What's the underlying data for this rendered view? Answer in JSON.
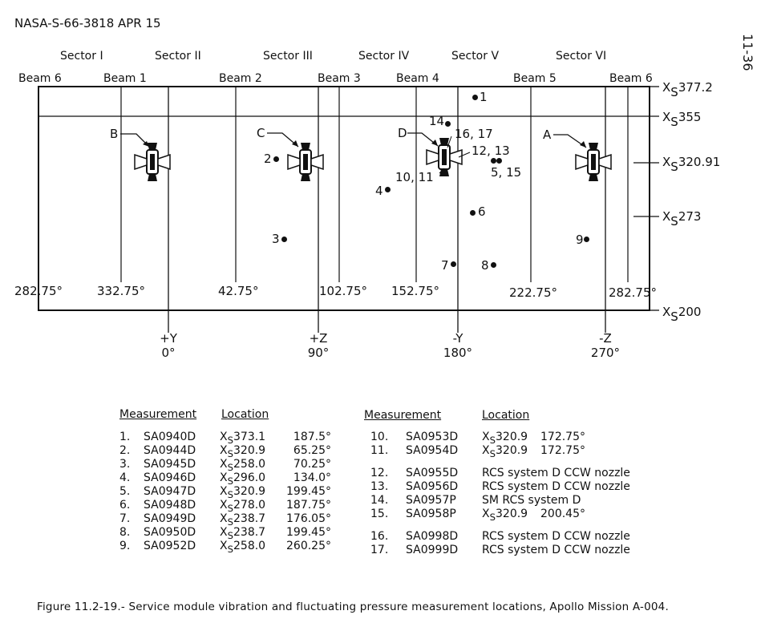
{
  "header": {
    "doc_id": "NASA-S-66-3818 APR 15",
    "page_number": "11-36"
  },
  "sectors": [
    "Sector I",
    "Sector II",
    "Sector III",
    "Sector IV",
    "Sector V",
    "Sector VI"
  ],
  "beams": [
    "Beam 6",
    "Beam 1",
    "Beam 2",
    "Beam 3",
    "Beam 4",
    "Beam 5",
    "Beam 6"
  ],
  "stations": [
    {
      "prefix": "X",
      "sub": "S",
      "value": "377.2"
    },
    {
      "prefix": "X",
      "sub": "S",
      "value": "355"
    },
    {
      "prefix": "X",
      "sub": "S",
      "value": "320.91"
    },
    {
      "prefix": "X",
      "sub": "S",
      "value": "273"
    },
    {
      "prefix": "X",
      "sub": "S",
      "value": "200"
    }
  ],
  "angles": [
    "282.75°",
    "332.75°",
    "42.75°",
    "102.75°",
    "152.75°",
    "222.75°",
    "282.75°"
  ],
  "axes": [
    {
      "name": "+Y",
      "deg": "0°"
    },
    {
      "name": "+Z",
      "deg": "90°"
    },
    {
      "name": "-Y",
      "deg": "180°"
    },
    {
      "name": "-Z",
      "deg": "270°"
    }
  ],
  "quads": [
    "A",
    "B",
    "C",
    "D"
  ],
  "points": [
    "1",
    "2",
    "3",
    "4",
    "5, 15",
    "6",
    "7",
    "8",
    "9",
    "10, 11",
    "12, 13",
    "14",
    "16, 17"
  ],
  "table": {
    "header_measurement": "Measurement",
    "header_location": "Location",
    "left": [
      {
        "n": "1.",
        "id": "SA0940D",
        "loc_prefix": "X",
        "loc_sub": "S",
        "loc_val": "373.1",
        "angle": "187.5°"
      },
      {
        "n": "2.",
        "id": "SA0944D",
        "loc_prefix": "X",
        "loc_sub": "S",
        "loc_val": "320.9",
        "angle": "65.25°"
      },
      {
        "n": "3.",
        "id": "SA0945D",
        "loc_prefix": "X",
        "loc_sub": "S",
        "loc_val": "258.0",
        "angle": "70.25°"
      },
      {
        "n": "4.",
        "id": "SA0946D",
        "loc_prefix": "X",
        "loc_sub": "S",
        "loc_val": "296.0",
        "angle": "134.0°"
      },
      {
        "n": "5.",
        "id": "SA0947D",
        "loc_prefix": "X",
        "loc_sub": "S",
        "loc_val": "320.9",
        "angle": "199.45°"
      },
      {
        "n": "6.",
        "id": "SA0948D",
        "loc_prefix": "X",
        "loc_sub": "S",
        "loc_val": "278.0",
        "angle": "187.75°"
      },
      {
        "n": "7.",
        "id": "SA0949D",
        "loc_prefix": "X",
        "loc_sub": "S",
        "loc_val": "238.7",
        "angle": "176.05°"
      },
      {
        "n": "8.",
        "id": "SA0950D",
        "loc_prefix": "X",
        "loc_sub": "S",
        "loc_val": "238.7",
        "angle": "199.45°"
      },
      {
        "n": "9.",
        "id": "SA0952D",
        "loc_prefix": "X",
        "loc_sub": "S",
        "loc_val": "258.0",
        "angle": "260.25°"
      }
    ],
    "right": [
      {
        "n": "10.",
        "id": "SA0953D",
        "text": "",
        "loc_prefix": "X",
        "loc_sub": "S",
        "loc_val": "320.9",
        "angle": "172.75°"
      },
      {
        "n": "11.",
        "id": "SA0954D",
        "text": "",
        "loc_prefix": "X",
        "loc_sub": "S",
        "loc_val": "320.9",
        "angle": "172.75°"
      },
      {
        "n": "12.",
        "id": "SA0955D",
        "text": "RCS system D CCW nozzle"
      },
      {
        "n": "13.",
        "id": "SA0956D",
        "text": "RCS system D CCW nozzle"
      },
      {
        "n": "14.",
        "id": "SA0957P",
        "text": "SM RCS system D"
      },
      {
        "n": "15.",
        "id": "SA0958P",
        "text": "",
        "loc_prefix": "X",
        "loc_sub": "S",
        "loc_val": "320.9",
        "angle": "200.45°"
      },
      {
        "n": "16.",
        "id": "SA0998D",
        "text": "RCS system D  CCW nozzle"
      },
      {
        "n": "17.",
        "id": "SA0999D",
        "text": "RCS system D  CCW nozzle"
      }
    ]
  },
  "caption": "Figure 11.2-19.-  Service module vibration and fluctuating pressure measurement locations, Apollo Mission A-004."
}
